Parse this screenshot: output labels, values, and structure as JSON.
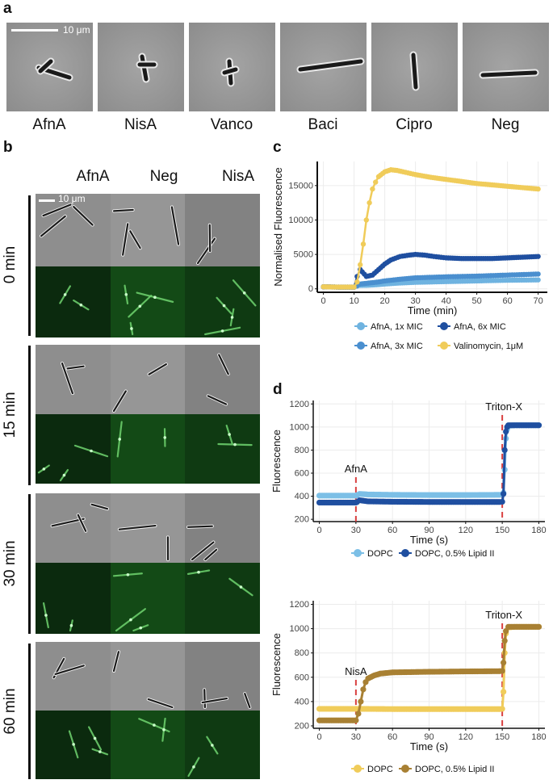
{
  "panel_a": {
    "letter": "a",
    "scalebar_label": "10 μm",
    "tiles": [
      "AfnA",
      "NisA",
      "Vanco",
      "Baci",
      "Cipro",
      "Neg"
    ]
  },
  "panel_b": {
    "letter": "b",
    "scalebar_label": "10 μm",
    "columns": [
      "AfnA",
      "Neg",
      "NisA"
    ],
    "timepoints": [
      "0 min",
      "15 min",
      "30 min",
      "60 min"
    ]
  },
  "colors": {
    "afna_1x": "#6fb3e0",
    "afna_3x": "#4a8fcf",
    "afna_6x": "#1f4fa0",
    "valinomycin": "#f0cc5a",
    "dopc_blue": "#7cbfe6",
    "dopc_lipid_blue": "#1f4fa0",
    "dopc_yellow": "#f0cc5a",
    "dopc_lipid_brown": "#a88033",
    "dashed_line": "#d94040",
    "fluor_cell": "#6fd46f",
    "phase_cell": "#1a1a1a"
  },
  "chart_data": [
    {
      "id": "c",
      "letter": "c",
      "type": "line",
      "xlabel": "Time (min)",
      "ylabel": "Normalised Fluorescence",
      "xlim": [
        -2,
        73
      ],
      "ylim": [
        -500,
        18500
      ],
      "xticks": [
        0,
        10,
        20,
        30,
        40,
        50,
        60,
        70
      ],
      "yticks": [
        0,
        5000,
        10000,
        15000
      ],
      "legend": [
        "AfnA, 1x MIC",
        "AfnA, 6x MIC",
        "AfnA, 3x MIC",
        "Valinomycin, 1μM"
      ],
      "series": [
        {
          "name": "AfnA, 1x MIC",
          "x": [
            0,
            5,
            10,
            11,
            12,
            14,
            16,
            18,
            20,
            25,
            30,
            40,
            50,
            60,
            70
          ],
          "values": [
            300,
            250,
            250,
            400,
            500,
            520,
            560,
            620,
            700,
            850,
            950,
            1050,
            1150,
            1250,
            1300
          ]
        },
        {
          "name": "AfnA, 3x MIC",
          "x": [
            0,
            5,
            10,
            11,
            12,
            14,
            16,
            18,
            20,
            25,
            30,
            40,
            50,
            60,
            70
          ],
          "values": [
            300,
            250,
            250,
            450,
            700,
            800,
            900,
            1000,
            1150,
            1400,
            1600,
            1750,
            1850,
            2000,
            2150
          ]
        },
        {
          "name": "AfnA, 6x MIC",
          "x": [
            0,
            5,
            10,
            11,
            12,
            14,
            16,
            18,
            20,
            22,
            25,
            28,
            30,
            33,
            36,
            40,
            45,
            50,
            55,
            60,
            65,
            70
          ],
          "values": [
            300,
            250,
            250,
            1800,
            2800,
            1800,
            2000,
            2800,
            3600,
            4200,
            4700,
            4900,
            5000,
            4900,
            4700,
            4500,
            4400,
            4400,
            4400,
            4500,
            4600,
            4700
          ]
        },
        {
          "name": "Valinomycin, 1μM",
          "x": [
            0,
            5,
            10,
            11,
            12,
            13,
            14,
            15,
            16,
            17,
            18,
            20,
            22,
            24,
            26,
            30,
            35,
            40,
            45,
            50,
            55,
            60,
            65,
            70
          ],
          "values": [
            300,
            250,
            250,
            1000,
            3500,
            6500,
            10000,
            12500,
            14500,
            15500,
            16300,
            17000,
            17300,
            17200,
            17000,
            16600,
            16200,
            15900,
            15600,
            15300,
            15100,
            14900,
            14700,
            14500
          ]
        }
      ]
    },
    {
      "id": "d1",
      "letter": "d",
      "type": "line",
      "xlabel": "Time (s)",
      "ylabel": "Fluorescence",
      "xlim": [
        -5,
        185
      ],
      "ylim": [
        180,
        1230
      ],
      "xticks": [
        0,
        30,
        60,
        90,
        120,
        150,
        180
      ],
      "yticks": [
        200,
        400,
        600,
        800,
        1000,
        1200
      ],
      "annotations": [
        {
          "text": "AfnA",
          "x": 30
        },
        {
          "text": "Triton-X",
          "x": 150
        }
      ],
      "legend": [
        "DOPC",
        "DOPC, 0.5% Lipid II"
      ],
      "series": [
        {
          "name": "DOPC",
          "x": [
            0,
            30,
            31,
            33,
            40,
            60,
            90,
            120,
            148,
            150,
            151,
            152,
            153,
            154,
            155,
            160,
            170,
            180
          ],
          "values": [
            405,
            405,
            410,
            420,
            415,
            412,
            410,
            410,
            412,
            415,
            430,
            630,
            900,
            980,
            1010,
            1015,
            1015,
            1015
          ]
        },
        {
          "name": "DOPC, 0.5% Lipid II",
          "x": [
            0,
            30,
            31,
            33,
            40,
            60,
            90,
            120,
            148,
            150,
            151,
            152,
            153,
            154,
            155,
            160,
            170,
            180
          ],
          "values": [
            345,
            345,
            350,
            365,
            355,
            352,
            350,
            350,
            350,
            352,
            420,
            800,
            960,
            1000,
            1015,
            1015,
            1015,
            1015
          ]
        }
      ]
    },
    {
      "id": "d2",
      "type": "line",
      "xlabel": "Time (s)",
      "ylabel": "Fluorescence",
      "xlim": [
        -5,
        185
      ],
      "ylim": [
        180,
        1230
      ],
      "xticks": [
        0,
        30,
        60,
        90,
        120,
        150,
        180
      ],
      "yticks": [
        200,
        400,
        600,
        800,
        1000,
        1200
      ],
      "annotations": [
        {
          "text": "NisA",
          "x": 30
        },
        {
          "text": "Triton-X",
          "x": 150
        }
      ],
      "legend": [
        "DOPC",
        "DOPC, 0.5% Lipid II"
      ],
      "series": [
        {
          "name": "DOPC",
          "x": [
            0,
            30,
            60,
            90,
            120,
            148,
            150,
            151,
            152,
            153,
            155,
            160,
            170,
            180
          ],
          "values": [
            340,
            340,
            338,
            338,
            338,
            338,
            340,
            480,
            800,
            960,
            1010,
            1015,
            1015,
            1015
          ]
        },
        {
          "name": "DOPC, 0.5% Lipid II",
          "x": [
            0,
            30,
            32,
            34,
            36,
            38,
            40,
            45,
            50,
            60,
            90,
            120,
            148,
            150,
            151,
            152,
            153,
            155,
            160,
            170,
            180
          ],
          "values": [
            245,
            245,
            300,
            400,
            500,
            560,
            590,
            615,
            630,
            640,
            645,
            648,
            650,
            652,
            720,
            900,
            980,
            1015,
            1015,
            1015,
            1015
          ]
        }
      ]
    }
  ]
}
